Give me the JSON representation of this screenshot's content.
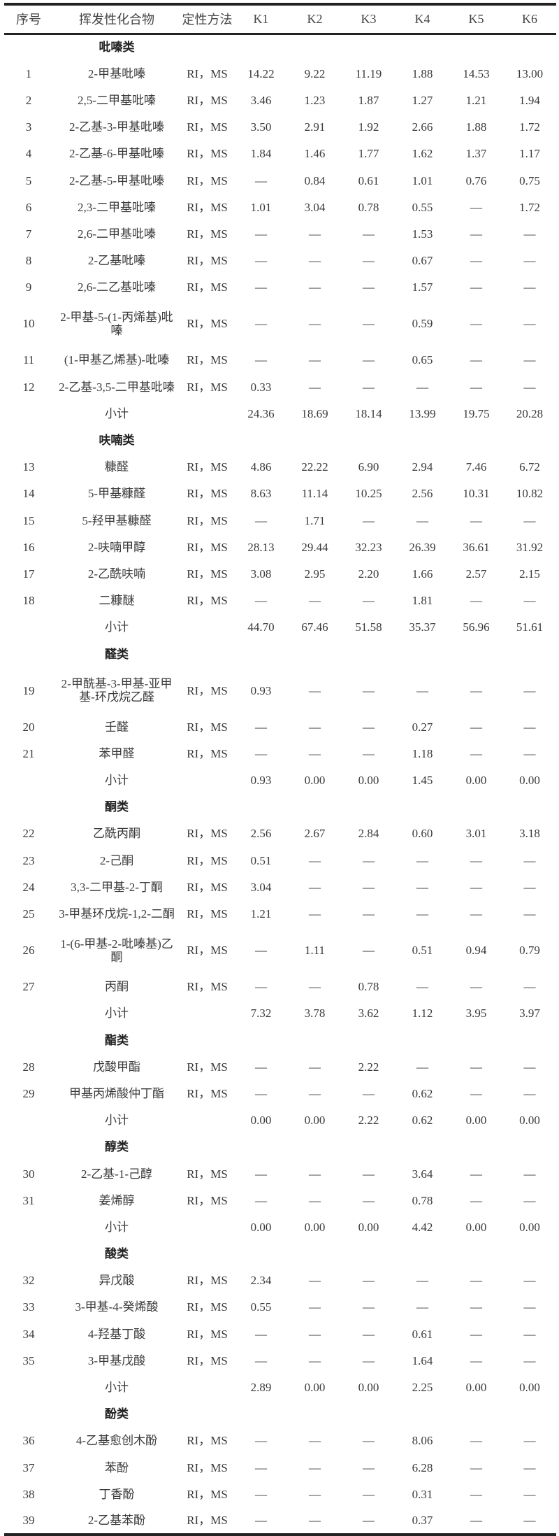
{
  "table": {
    "header": [
      "序号",
      "挥发性化合物",
      "定性方法",
      "K1",
      "K2",
      "K3",
      "K4",
      "K5",
      "K6"
    ],
    "subtotal_label": "小计",
    "sections": [
      {
        "name": "吡嗪类",
        "rows": [
          {
            "id": "1",
            "compound": "2-甲基吡嗪",
            "method": "RI，MS",
            "values": [
              "14.22",
              "9.22",
              "11.19",
              "1.88",
              "14.53",
              "13.00"
            ]
          },
          {
            "id": "2",
            "compound": "2,5-二甲基吡嗪",
            "method": "RI，MS",
            "values": [
              "3.46",
              "1.23",
              "1.87",
              "1.27",
              "1.21",
              "1.94"
            ]
          },
          {
            "id": "3",
            "compound": "2-乙基-3-甲基吡嗪",
            "method": "RI，MS",
            "values": [
              "3.50",
              "2.91",
              "1.92",
              "2.66",
              "1.88",
              "1.72"
            ]
          },
          {
            "id": "4",
            "compound": "2-乙基-6-甲基吡嗪",
            "method": "RI，MS",
            "values": [
              "1.84",
              "1.46",
              "1.77",
              "1.62",
              "1.37",
              "1.17"
            ]
          },
          {
            "id": "5",
            "compound": "2-乙基-5-甲基吡嗪",
            "method": "RI，MS",
            "values": [
              "—",
              "0.84",
              "0.61",
              "1.01",
              "0.76",
              "0.75"
            ]
          },
          {
            "id": "6",
            "compound": "2,3-二甲基吡嗪",
            "method": "RI，MS",
            "values": [
              "1.01",
              "3.04",
              "0.78",
              "0.55",
              "—",
              "1.72"
            ]
          },
          {
            "id": "7",
            "compound": "2,6-二甲基吡嗪",
            "method": "RI，MS",
            "values": [
              "—",
              "—",
              "—",
              "1.53",
              "—",
              "—"
            ]
          },
          {
            "id": "8",
            "compound": "2-乙基吡嗪",
            "method": "RI，MS",
            "values": [
              "—",
              "—",
              "—",
              "0.67",
              "—",
              "—"
            ]
          },
          {
            "id": "9",
            "compound": "2,6-二乙基吡嗪",
            "method": "RI，MS",
            "values": [
              "—",
              "—",
              "—",
              "1.57",
              "—",
              "—"
            ]
          },
          {
            "id": "10",
            "compound": "2-甲基-5-(1-丙烯基)吡嗪",
            "method": "RI，MS",
            "values": [
              "—",
              "—",
              "—",
              "0.59",
              "—",
              "—"
            ]
          },
          {
            "id": "11",
            "compound": "(1-甲基乙烯基)-吡嗪",
            "method": "RI，MS",
            "values": [
              "—",
              "—",
              "—",
              "0.65",
              "—",
              "—"
            ]
          },
          {
            "id": "12",
            "compound": "2-乙基-3,5-二甲基吡嗪",
            "method": "RI，MS",
            "values": [
              "0.33",
              "—",
              "—",
              "—",
              "—",
              "—"
            ]
          }
        ],
        "subtotal": [
          "24.36",
          "18.69",
          "18.14",
          "13.99",
          "19.75",
          "20.28"
        ]
      },
      {
        "name": "呋喃类",
        "rows": [
          {
            "id": "13",
            "compound": "糠醛",
            "method": "RI，MS",
            "values": [
              "4.86",
              "22.22",
              "6.90",
              "2.94",
              "7.46",
              "6.72"
            ]
          },
          {
            "id": "14",
            "compound": "5-甲基糠醛",
            "method": "RI，MS",
            "values": [
              "8.63",
              "11.14",
              "10.25",
              "2.56",
              "10.31",
              "10.82"
            ]
          },
          {
            "id": "15",
            "compound": "5-羟甲基糠醛",
            "method": "RI，MS",
            "values": [
              "—",
              "1.71",
              "—",
              "—",
              "—",
              "—"
            ]
          },
          {
            "id": "16",
            "compound": "2-呋喃甲醇",
            "method": "RI，MS",
            "values": [
              "28.13",
              "29.44",
              "32.23",
              "26.39",
              "36.61",
              "31.92"
            ]
          },
          {
            "id": "17",
            "compound": "2-乙酰呋喃",
            "method": "RI，MS",
            "values": [
              "3.08",
              "2.95",
              "2.20",
              "1.66",
              "2.57",
              "2.15"
            ]
          },
          {
            "id": "18",
            "compound": "二糠醚",
            "method": "RI，MS",
            "values": [
              "—",
              "—",
              "—",
              "1.81",
              "—",
              "—"
            ]
          }
        ],
        "subtotal": [
          "44.70",
          "67.46",
          "51.58",
          "35.37",
          "56.96",
          "51.61"
        ]
      },
      {
        "name": "醛类",
        "rows": [
          {
            "id": "19",
            "compound": "2-甲酰基-3-甲基-亚甲基-环戊烷乙醛",
            "method": "RI，MS",
            "values": [
              "0.93",
              "—",
              "—",
              "—",
              "—",
              "—"
            ]
          },
          {
            "id": "20",
            "compound": "壬醛",
            "method": "RI，MS",
            "values": [
              "—",
              "—",
              "—",
              "0.27",
              "—",
              "—"
            ]
          },
          {
            "id": "21",
            "compound": "苯甲醛",
            "method": "RI，MS",
            "values": [
              "—",
              "—",
              "—",
              "1.18",
              "—",
              "—"
            ]
          }
        ],
        "subtotal": [
          "0.93",
          "0.00",
          "0.00",
          "1.45",
          "0.00",
          "0.00"
        ]
      },
      {
        "name": "酮类",
        "rows": [
          {
            "id": "22",
            "compound": "乙酰丙酮",
            "method": "RI，MS",
            "values": [
              "2.56",
              "2.67",
              "2.84",
              "0.60",
              "3.01",
              "3.18"
            ]
          },
          {
            "id": "23",
            "compound": "2-己酮",
            "method": "RI，MS",
            "values": [
              "0.51",
              "—",
              "—",
              "—",
              "—",
              "—"
            ]
          },
          {
            "id": "24",
            "compound": "3,3-二甲基-2-丁酮",
            "method": "RI，MS",
            "values": [
              "3.04",
              "—",
              "—",
              "—",
              "—",
              "—"
            ]
          },
          {
            "id": "25",
            "compound": "3-甲基环戊烷-1,2-二酮",
            "method": "RI，MS",
            "values": [
              "1.21",
              "—",
              "—",
              "—",
              "—",
              "—"
            ]
          },
          {
            "id": "26",
            "compound": "1-(6-甲基-2-吡嗪基)乙酮",
            "method": "RI，MS",
            "values": [
              "—",
              "1.11",
              "—",
              "0.51",
              "0.94",
              "0.79"
            ]
          },
          {
            "id": "27",
            "compound": "丙酮",
            "method": "RI，MS",
            "values": [
              "—",
              "—",
              "0.78",
              "—",
              "—",
              "—"
            ]
          }
        ],
        "subtotal": [
          "7.32",
          "3.78",
          "3.62",
          "1.12",
          "3.95",
          "3.97"
        ]
      },
      {
        "name": "酯类",
        "rows": [
          {
            "id": "28",
            "compound": "戊酸甲酯",
            "method": "RI，MS",
            "values": [
              "—",
              "—",
              "2.22",
              "—",
              "—",
              "—"
            ]
          },
          {
            "id": "29",
            "compound": "甲基丙烯酸仲丁酯",
            "method": "RI，MS",
            "values": [
              "—",
              "—",
              "—",
              "0.62",
              "—",
              "—"
            ]
          }
        ],
        "subtotal": [
          "0.00",
          "0.00",
          "2.22",
          "0.62",
          "0.00",
          "0.00"
        ]
      },
      {
        "name": "醇类",
        "rows": [
          {
            "id": "30",
            "compound": "2-乙基-1-己醇",
            "method": "RI，MS",
            "values": [
              "—",
              "—",
              "—",
              "3.64",
              "—",
              "—"
            ]
          },
          {
            "id": "31",
            "compound": "姜烯醇",
            "method": "RI，MS",
            "values": [
              "—",
              "—",
              "—",
              "0.78",
              "—",
              "—"
            ]
          }
        ],
        "subtotal": [
          "0.00",
          "0.00",
          "0.00",
          "4.42",
          "0.00",
          "0.00"
        ]
      },
      {
        "name": "酸类",
        "rows": [
          {
            "id": "32",
            "compound": "异戊酸",
            "method": "RI，MS",
            "values": [
              "2.34",
              "—",
              "—",
              "—",
              "—",
              "—"
            ]
          },
          {
            "id": "33",
            "compound": "3-甲基-4-癸烯酸",
            "method": "RI，MS",
            "values": [
              "0.55",
              "—",
              "—",
              "—",
              "—",
              "—"
            ]
          },
          {
            "id": "34",
            "compound": "4-羟基丁酸",
            "method": "RI，MS",
            "values": [
              "—",
              "—",
              "—",
              "0.61",
              "—",
              "—"
            ]
          },
          {
            "id": "35",
            "compound": "3-甲基戊酸",
            "method": "RI，MS",
            "values": [
              "—",
              "—",
              "—",
              "1.64",
              "—",
              "—"
            ]
          }
        ],
        "subtotal": [
          "2.89",
          "0.00",
          "0.00",
          "2.25",
          "0.00",
          "0.00"
        ]
      },
      {
        "name": "酚类",
        "rows": [
          {
            "id": "36",
            "compound": "4-乙基愈创木酚",
            "method": "RI，MS",
            "values": [
              "—",
              "—",
              "—",
              "8.06",
              "—",
              "—"
            ]
          },
          {
            "id": "37",
            "compound": "苯酚",
            "method": "RI，MS",
            "values": [
              "—",
              "—",
              "—",
              "6.28",
              "—",
              "—"
            ]
          },
          {
            "id": "38",
            "compound": "丁香酚",
            "method": "RI，MS",
            "values": [
              "—",
              "—",
              "—",
              "0.31",
              "—",
              "—"
            ]
          },
          {
            "id": "39",
            "compound": "2-乙基苯酚",
            "method": "RI，MS",
            "values": [
              "—",
              "—",
              "—",
              "0.37",
              "—",
              "—"
            ]
          }
        ]
      }
    ]
  }
}
